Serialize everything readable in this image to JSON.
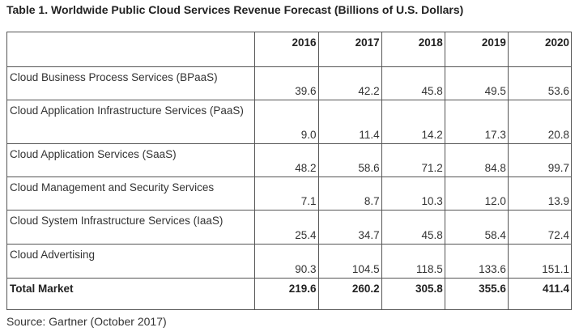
{
  "title": "Table 1. Worldwide Public Cloud Services Revenue Forecast (Billions of U.S. Dollars)",
  "table": {
    "columns": [
      "",
      "2016",
      "2017",
      "2018",
      "2019",
      "2020"
    ],
    "rows": [
      {
        "label": "Cloud Business Process Services (BPaaS)",
        "values": [
          "39.6",
          "42.2",
          "45.8",
          "49.5",
          "53.6"
        ]
      },
      {
        "label": "Cloud Application Infrastructure Services (PaaS)",
        "values": [
          "9.0",
          "11.4",
          "14.2",
          "17.3",
          "20.8"
        ]
      },
      {
        "label": "Cloud Application Services (SaaS)",
        "values": [
          "48.2",
          "58.6",
          "71.2",
          "84.8",
          "99.7"
        ]
      },
      {
        "label": "Cloud Management and Security Services",
        "values": [
          "7.1",
          "8.7",
          "10.3",
          "12.0",
          "13.9"
        ]
      },
      {
        "label": "Cloud System Infrastructure Services (IaaS)",
        "values": [
          "25.4",
          "34.7",
          "45.8",
          "58.4",
          "72.4"
        ]
      },
      {
        "label": "Cloud Advertising",
        "values": [
          "90.3",
          "104.5",
          "118.5",
          "133.6",
          "151.1"
        ]
      }
    ],
    "total": {
      "label": "Total Market",
      "values": [
        "219.6",
        "260.2",
        "305.8",
        "355.6",
        "411.4"
      ]
    }
  },
  "source": "Source: Gartner (October 2017)"
}
